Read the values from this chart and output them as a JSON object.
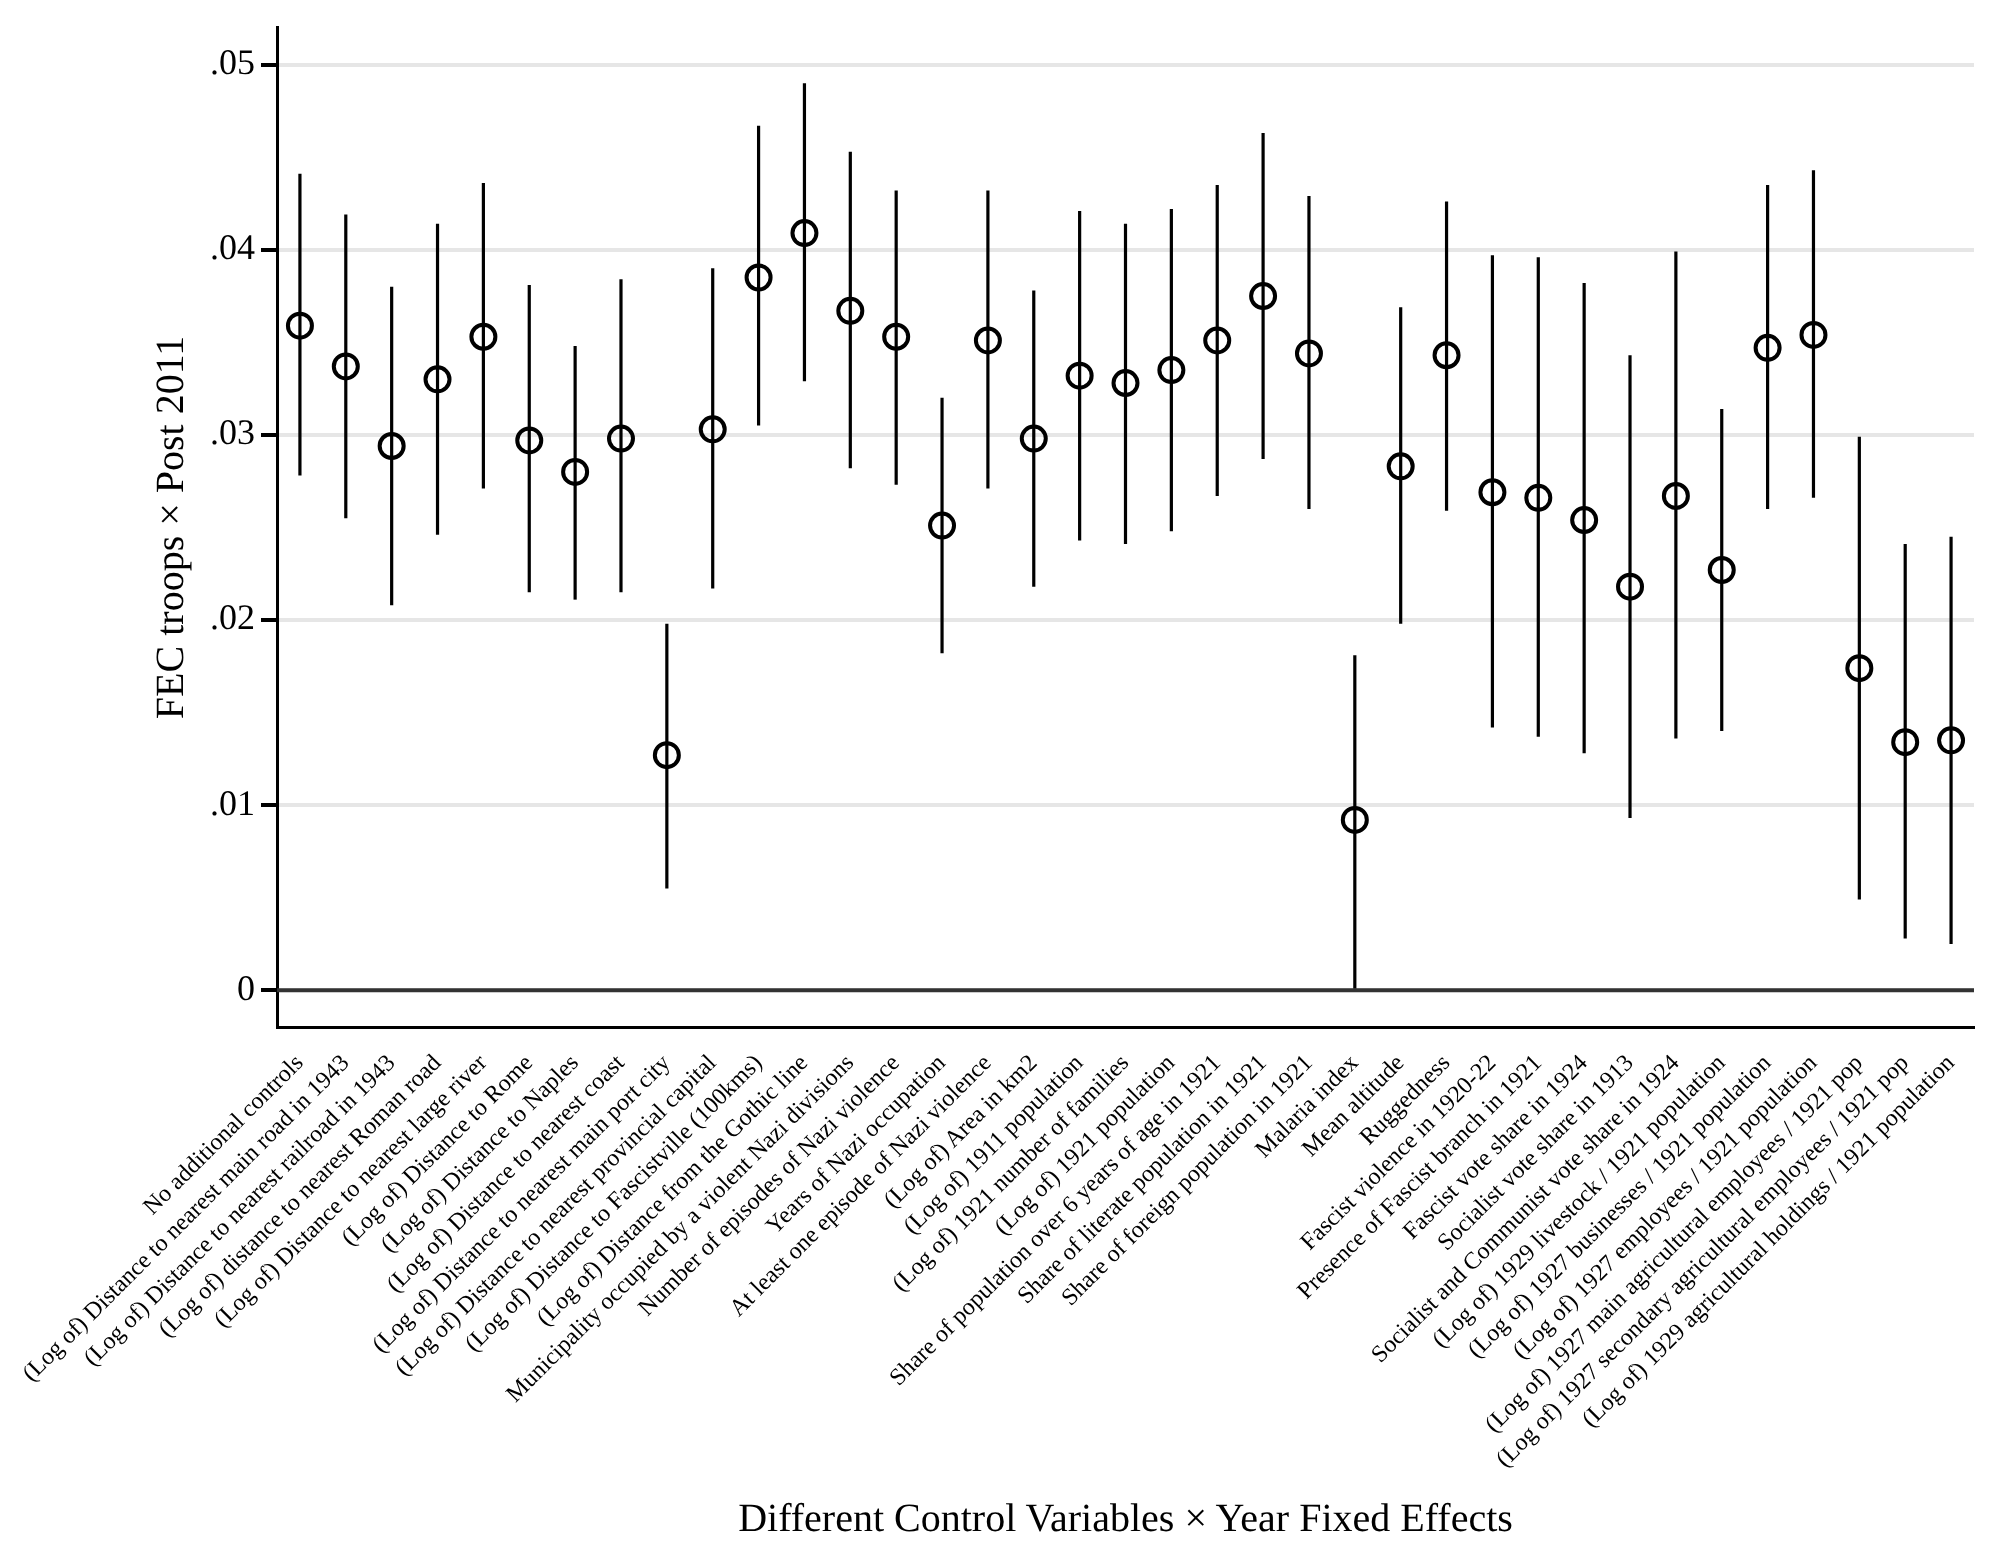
{
  "chart_data": {
    "type": "scatter",
    "xlabel": "Different Control Variables × Year Fixed Effects",
    "ylabel": "FEC troops × Post 2011",
    "categories": [
      "No additional controls",
      "(Log of) Distance to nearest main road in 1943",
      "(Log of) Distance to nearest railroad in 1943",
      "(Log of) distance to nearest Roman road",
      "(Log of) Distance to nearest large river",
      "(Log of) Distance to Rome",
      "(Log of) Distance to Naples",
      "(Log of) Distance to nearest coast",
      "(Log of) Distance to nearest main port city",
      "(Log of) Distance to nearest provincial capital",
      "(Log of) Distance to Fascistville (100kms)",
      "(Log of) Distance from the Gothic line",
      "Municipality occupied by a violent Nazi divisions",
      "Number of episodes of Nazi violence",
      "Years of Nazi occupation",
      "At least one episode of Nazi violence",
      "(Log of) Area in km2",
      "(Log of) 1911 population",
      "(Log of) 1921 number of families",
      "(Log of) 1921 population",
      "Share of population over 6 years of age in 1921",
      "Share of literate population in 1921",
      "Share of foreign population in 1921",
      "Malaria index",
      "Mean altitude",
      "Ruggedness",
      "Fascist violence in 1920-22",
      "Presence of Fascist branch in 1921",
      "Fascist vote share in 1924",
      "Socialist vote share in 1913",
      "Socialist and Communist vote share in 1924",
      "(Log of) 1929 livestock / 1921 population",
      "(Log of) 1927 businesses / 1921 population",
      "(Log of) 1927 employees / 1921 population",
      "(Log of) 1927 main agricultural employees / 1921 pop",
      "(Log of) 1927 secondary agricultural employees / 1921 pop",
      "(Log of) 1929 agricultural holdings / 1921 population"
    ],
    "values": [
      0.0359,
      0.0337,
      0.0294,
      0.033,
      0.0353,
      0.0297,
      0.028,
      0.0298,
      0.0127,
      0.0303,
      0.0385,
      0.0409,
      0.0367,
      0.0353,
      0.0251,
      0.0351,
      0.0298,
      0.0332,
      0.0328,
      0.0335,
      0.0351,
      0.0375,
      0.0344,
      0.0092,
      0.0283,
      0.0343,
      0.0269,
      0.0266,
      0.0254,
      0.0218,
      0.0267,
      0.0227,
      0.0347,
      0.0354,
      0.0174,
      0.0134,
      0.0135
    ],
    "errors": [
      [
        0.0278,
        0.0441
      ],
      [
        0.0255,
        0.0419
      ],
      [
        0.0208,
        0.038
      ],
      [
        0.0246,
        0.0414
      ],
      [
        0.0271,
        0.0436
      ],
      [
        0.0215,
        0.0381
      ],
      [
        0.0211,
        0.0348
      ],
      [
        0.0215,
        0.0384
      ],
      [
        0.0055,
        0.0198
      ],
      [
        0.0217,
        0.039
      ],
      [
        0.0305,
        0.0467
      ],
      [
        0.0329,
        0.049
      ],
      [
        0.0282,
        0.0453
      ],
      [
        0.0273,
        0.0432
      ],
      [
        0.0182,
        0.032
      ],
      [
        0.0271,
        0.0432
      ],
      [
        0.0218,
        0.0378
      ],
      [
        0.0243,
        0.0421
      ],
      [
        0.0241,
        0.0414
      ],
      [
        0.0248,
        0.0422
      ],
      [
        0.0267,
        0.0435
      ],
      [
        0.0287,
        0.0463
      ],
      [
        0.026,
        0.0429
      ],
      [
        0.0001,
        0.0181
      ],
      [
        0.0198,
        0.0369
      ],
      [
        0.0259,
        0.0426
      ],
      [
        0.0142,
        0.0397
      ],
      [
        0.0137,
        0.0396
      ],
      [
        0.0128,
        0.0382
      ],
      [
        0.0093,
        0.0343
      ],
      [
        0.0136,
        0.0399
      ],
      [
        0.014,
        0.0314
      ],
      [
        0.026,
        0.0435
      ],
      [
        0.0266,
        0.0443
      ],
      [
        0.0049,
        0.0299
      ],
      [
        0.0028,
        0.0241
      ],
      [
        0.0025,
        0.0245
      ]
    ],
    "color": "#000000",
    "marker": "circle",
    "ylim": [
      -0.002,
      0.052
    ],
    "yticks": [
      {
        "value": 0,
        "label": "0"
      },
      {
        "value": 0.01,
        "label": ".01"
      },
      {
        "value": 0.02,
        "label": ".02"
      },
      {
        "value": 0.03,
        "label": ".03"
      },
      {
        "value": 0.04,
        "label": ".04"
      },
      {
        "value": 0.05,
        "label": ".05"
      }
    ],
    "ref_lines": [
      {
        "axis": "y",
        "value": 0,
        "color": "#333333"
      }
    ],
    "grid": "y",
    "legend": false
  }
}
